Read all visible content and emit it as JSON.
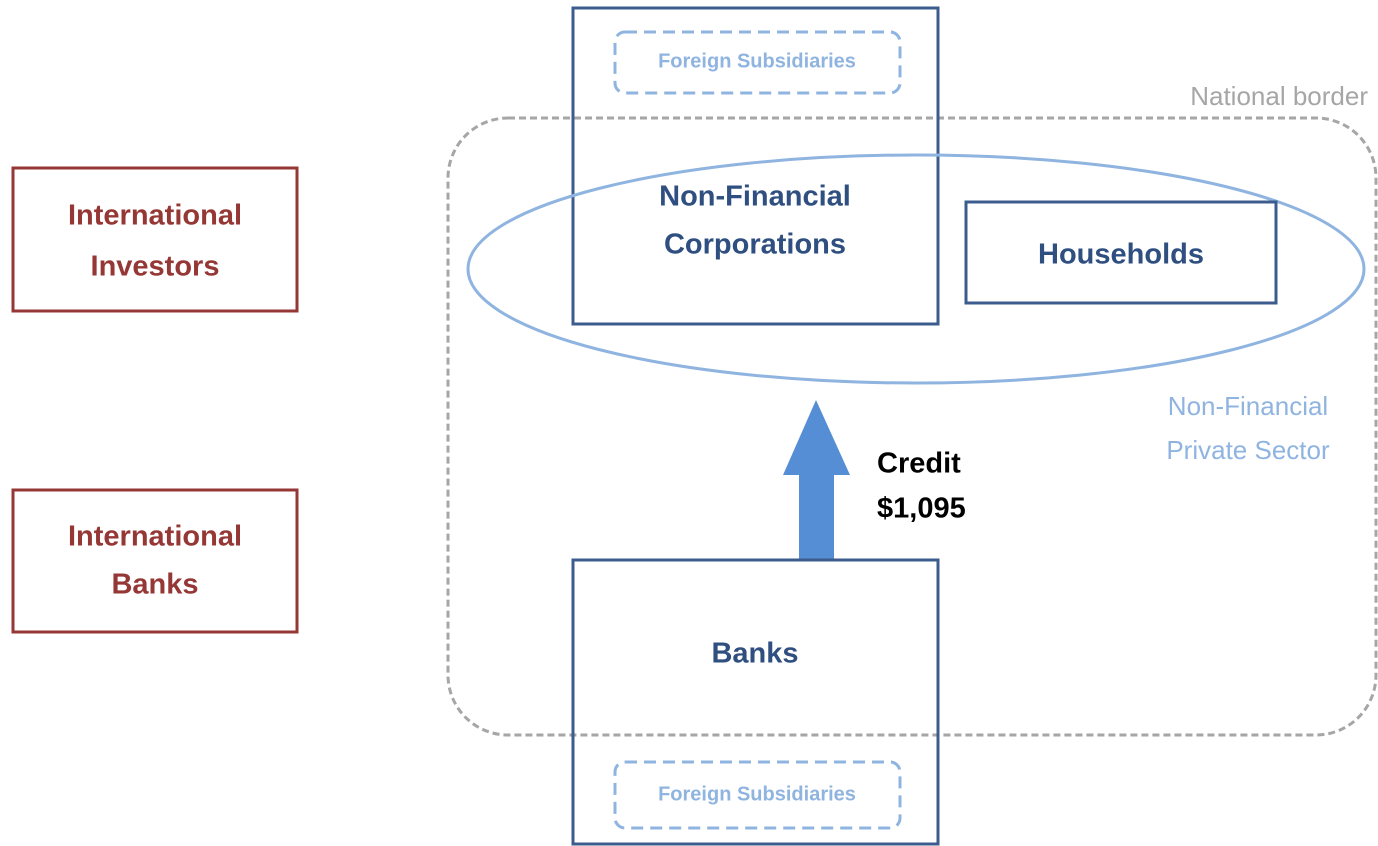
{
  "nodes": [
    {
      "id": "foreign-subsidiaries-top",
      "label": "Foreign Subsidiaries"
    },
    {
      "id": "national-border",
      "label": "National border"
    },
    {
      "id": "non-financial-corporations",
      "lines": [
        "Non-Financial",
        "Corporations"
      ]
    },
    {
      "id": "households",
      "label": "Households"
    },
    {
      "id": "international-investors",
      "lines": [
        "International",
        "Investors"
      ]
    },
    {
      "id": "international-banks",
      "lines": [
        "International",
        "Banks"
      ]
    },
    {
      "id": "non-financial-private-sector",
      "lines": [
        "Non-Financial",
        "Private Sector"
      ]
    },
    {
      "id": "banks",
      "label": "Banks"
    },
    {
      "id": "foreign-subsidiaries-bottom",
      "label": "Foreign Subsidiaries"
    }
  ],
  "edges": [
    {
      "from": "banks",
      "to": "non-financial-private-sector",
      "lines": [
        "Credit",
        "$1,095"
      ]
    }
  ]
}
